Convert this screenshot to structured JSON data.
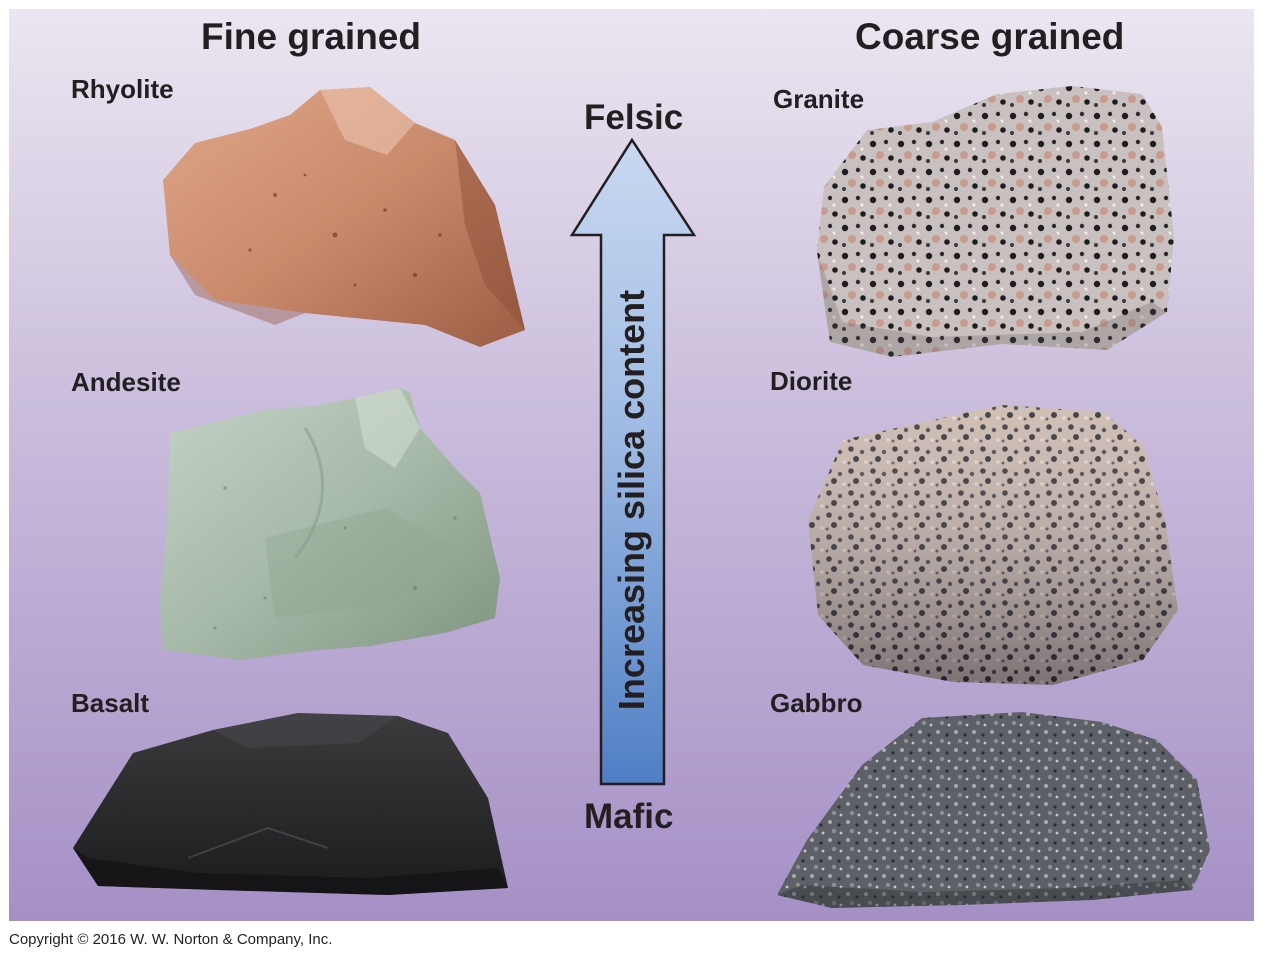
{
  "headings": {
    "fine": "Fine grained",
    "coarse": "Coarse grained"
  },
  "rocks": {
    "rhyolite": "Rhyolite",
    "andesite": "Andesite",
    "basalt": "Basalt",
    "granite": "Granite",
    "diorite": "Diorite",
    "gabbro": "Gabbro"
  },
  "arrow": {
    "top_label": "Felsic",
    "bottom_label": "Mafic",
    "axis_text": "Increasing silica content"
  },
  "copyright": "Copyright © 2016 W. W. Norton & Company, Inc.",
  "colors": {
    "background_top": "#ebe6f0",
    "background_bottom": "#a590c6",
    "arrow_top": "#c8d9f0",
    "arrow_bottom": "#4f7fc4",
    "rhyolite": "#c98a6c",
    "andesite": "#a7b9a9",
    "basalt": "#2c2b2d",
    "granite": "#b9b2b0",
    "diorite": "#9a8f8a",
    "gabbro": "#5a5d62"
  }
}
